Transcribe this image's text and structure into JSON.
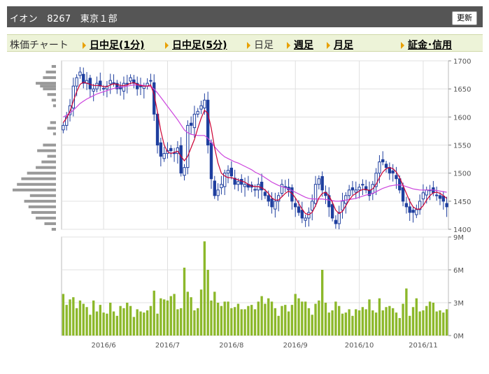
{
  "header": {
    "title": "イオン　8267　東京１部",
    "refresh_label": "更新"
  },
  "menu": {
    "stock_chart": "株価チャート",
    "intraday_1": "日中足(1分)",
    "intraday_5": "日中足(5分)",
    "daily": "日足",
    "weekly": "週足",
    "monthly": "月足",
    "margin": "証金･信用"
  },
  "colors": {
    "up_candle": "#ffffff",
    "down_candle": "#1f3f9f",
    "ma_short": "#cc0033",
    "ma_long": "#cc44dd",
    "volume_bar": "#8cb82a",
    "volume_profile": "#999999",
    "grid": "#e0e0e0"
  },
  "chart_data": [
    {
      "type": "candlestick",
      "title": "",
      "xlabel": "",
      "ylabel": "",
      "ylim": [
        1400,
        1700
      ],
      "y_ticks": [
        "1700",
        "1650",
        "1600",
        "1550",
        "1500",
        "1450",
        "1400"
      ],
      "x_ticks": [
        "2016/6",
        "2016/7",
        "2016/8",
        "2016/9",
        "2016/10",
        "2016/11"
      ],
      "x_tick_index": [
        12,
        31,
        50,
        69,
        88,
        107
      ],
      "series_close": [
        1585,
        1600,
        1620,
        1655,
        1670,
        1680,
        1660,
        1665,
        1650,
        1650,
        1660,
        1655,
        1650,
        1655,
        1665,
        1660,
        1650,
        1650,
        1660,
        1660,
        1670,
        1660,
        1650,
        1655,
        1655,
        1660,
        1665,
        1605,
        1550,
        1530,
        1535,
        1540,
        1540,
        1535,
        1545,
        1500,
        1510,
        1585,
        1585,
        1605,
        1610,
        1620,
        1630,
        1550,
        1490,
        1460,
        1470,
        1480,
        1500,
        1505,
        1495,
        1480,
        1485,
        1480,
        1480,
        1475,
        1475,
        1470,
        1480,
        1470,
        1460,
        1450,
        1440,
        1450,
        1460,
        1480,
        1475,
        1470,
        1450,
        1440,
        1430,
        1420,
        1420,
        1430,
        1450,
        1480,
        1490,
        1470,
        1460,
        1440,
        1420,
        1410,
        1430,
        1450,
        1460,
        1470,
        1470,
        1470,
        1475,
        1480,
        1470,
        1460,
        1480,
        1500,
        1520,
        1520,
        1510,
        1500,
        1500,
        1490,
        1470,
        1450,
        1440,
        1430,
        1430,
        1435,
        1450,
        1465,
        1470,
        1470,
        1465,
        1460,
        1455,
        1450,
        1440
      ],
      "volume_profile": [
        [
          1690,
          3
        ],
        [
          1680,
          7
        ],
        [
          1670,
          9
        ],
        [
          1660,
          14
        ],
        [
          1655,
          11
        ],
        [
          1650,
          9
        ],
        [
          1640,
          6
        ],
        [
          1630,
          3
        ],
        [
          1620,
          2
        ],
        [
          1590,
          4
        ],
        [
          1580,
          6
        ],
        [
          1570,
          2
        ],
        [
          1550,
          9
        ],
        [
          1540,
          13
        ],
        [
          1530,
          6
        ],
        [
          1520,
          10
        ],
        [
          1510,
          14
        ],
        [
          1500,
          20
        ],
        [
          1490,
          24
        ],
        [
          1480,
          27
        ],
        [
          1470,
          30
        ],
        [
          1460,
          18
        ],
        [
          1450,
          22
        ],
        [
          1440,
          19
        ],
        [
          1430,
          17
        ],
        [
          1420,
          14
        ],
        [
          1410,
          8
        ],
        [
          1400,
          3
        ]
      ],
      "ma_short": [
        1590,
        1598,
        1610,
        1628,
        1645,
        1658,
        1662,
        1660,
        1658,
        1656,
        1656,
        1656,
        1654,
        1654,
        1657,
        1659,
        1658,
        1656,
        1656,
        1657,
        1660,
        1661,
        1658,
        1656,
        1655,
        1655,
        1657,
        1640,
        1610,
        1575,
        1550,
        1538,
        1535,
        1537,
        1539,
        1530,
        1522,
        1530,
        1545,
        1560,
        1580,
        1598,
        1612,
        1606,
        1580,
        1545,
        1518,
        1500,
        1495,
        1492,
        1492,
        1490,
        1488,
        1486,
        1484,
        1480,
        1477,
        1476,
        1476,
        1474,
        1470,
        1464,
        1456,
        1452,
        1452,
        1458,
        1464,
        1468,
        1464,
        1456,
        1446,
        1436,
        1428,
        1426,
        1430,
        1442,
        1456,
        1464,
        1466,
        1460,
        1448,
        1434,
        1428,
        1432,
        1442,
        1452,
        1460,
        1464,
        1468,
        1471,
        1471,
        1469,
        1472,
        1480,
        1492,
        1502,
        1508,
        1510,
        1508,
        1502,
        1492,
        1478,
        1464,
        1450,
        1440,
        1436,
        1436,
        1442,
        1452,
        1460,
        1465,
        1466,
        1464,
        1460,
        1455
      ],
      "ma_long": [
        1600,
        1603,
        1607,
        1612,
        1618,
        1624,
        1628,
        1632,
        1635,
        1638,
        1641,
        1643,
        1645,
        1647,
        1649,
        1651,
        1652,
        1653,
        1654,
        1655,
        1656,
        1657,
        1657,
        1657,
        1656,
        1655,
        1654,
        1650,
        1643,
        1635,
        1627,
        1619,
        1611,
        1603,
        1595,
        1586,
        1577,
        1572,
        1569,
        1568,
        1567,
        1567,
        1567,
        1562,
        1555,
        1547,
        1540,
        1534,
        1529,
        1526,
        1523,
        1520,
        1518,
        1515,
        1512,
        1509,
        1506,
        1502,
        1499,
        1496,
        1492,
        1488,
        1484,
        1481,
        1478,
        1476,
        1474,
        1472,
        1469,
        1466,
        1463,
        1460,
        1457,
        1455,
        1454,
        1454,
        1454,
        1454,
        1453,
        1452,
        1451,
        1450,
        1450,
        1451,
        1452,
        1453,
        1454,
        1455,
        1457,
        1459,
        1461,
        1462,
        1464,
        1467,
        1470,
        1473,
        1475,
        1477,
        1478,
        1479,
        1479,
        1478,
        1476,
        1474,
        1472,
        1471,
        1470,
        1470,
        1470,
        1470,
        1470,
        1469,
        1468,
        1467,
        1466
      ],
      "volume": [
        3.8,
        2.8,
        3.3,
        3.5,
        2.5,
        3.2,
        2.9,
        2.6,
        1.9,
        3.2,
        2.2,
        2.8,
        2.1,
        2.0,
        3.0,
        2.2,
        1.8,
        2.7,
        2.5,
        3.0,
        2.7,
        1.7,
        2.4,
        2.2,
        2.1,
        2.3,
        2.7,
        4.1,
        2.0,
        3.4,
        3.3,
        3.2,
        3.6,
        3.8,
        2.4,
        2.5,
        6.2,
        4.0,
        3.5,
        2.3,
        2.5,
        4.2,
        8.6,
        6.0,
        3.2,
        4.0,
        3.0,
        2.7,
        3.1,
        3.1,
        2.5,
        2.6,
        2.9,
        2.4,
        2.4,
        2.7,
        2.8,
        2.4,
        3.1,
        3.6,
        2.9,
        3.4,
        3.1,
        2.5,
        1.8,
        2.7,
        2.8,
        2.2,
        2.8,
        3.8,
        3.4,
        3.1,
        3.1,
        2.5,
        1.9,
        2.9,
        3.2,
        6.0,
        3.0,
        2.1,
        2.3,
        3.1,
        2.7,
        2.0,
        2.1,
        2.4,
        1.8,
        2.4,
        2.3,
        2.6,
        2.4,
        3.3,
        2.3,
        2.1,
        3.4,
        2.3,
        2.6,
        2.7,
        2.5,
        2.1,
        1.6,
        2.9,
        4.3,
        1.8,
        2.6,
        3.4,
        2.2,
        2.3,
        2.7,
        3.1,
        3.0,
        2.2,
        2.3,
        2.1,
        2.4
      ],
      "volume_ylim": [
        0,
        9
      ],
      "volume_ticks": [
        "0M",
        "3M",
        "6M",
        "9M"
      ]
    }
  ]
}
